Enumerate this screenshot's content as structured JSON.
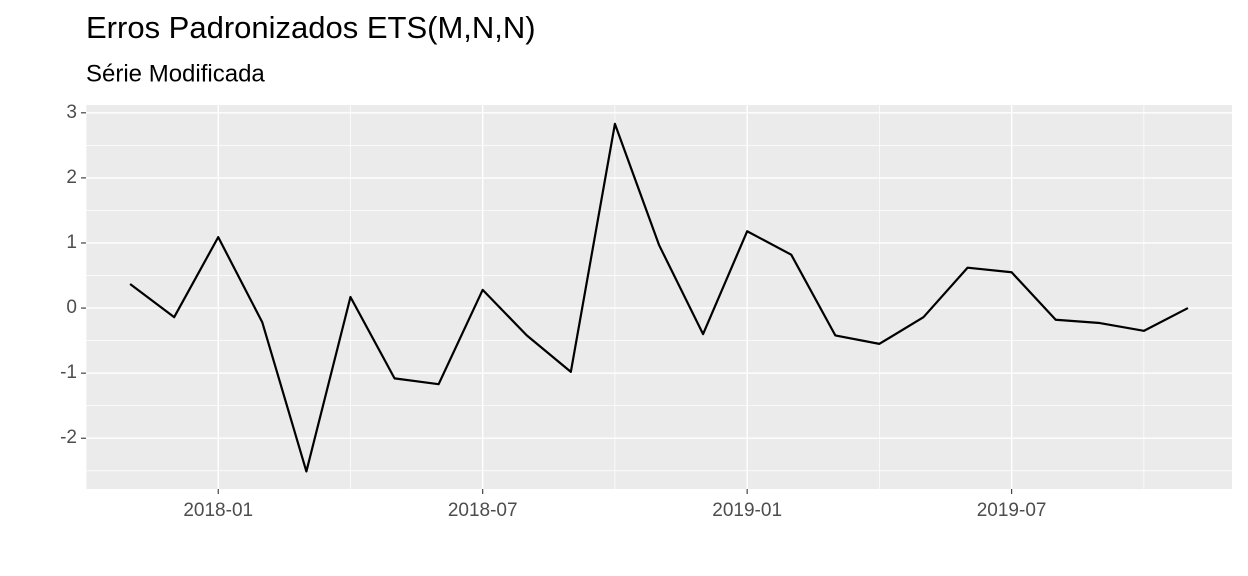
{
  "chart_data": {
    "type": "line",
    "title": "Erros Padronizados ETS(M,N,N)",
    "subtitle": "Série Modificada",
    "x": [
      "2017-11",
      "2017-12",
      "2018-01",
      "2018-02",
      "2018-03",
      "2018-04",
      "2018-05",
      "2018-06",
      "2018-07",
      "2018-08",
      "2018-09",
      "2018-10",
      "2018-11",
      "2018-12",
      "2019-01",
      "2019-02",
      "2019-03",
      "2019-04",
      "2019-05",
      "2019-06",
      "2019-07",
      "2019-08",
      "2019-09",
      "2019-10",
      "2019-11"
    ],
    "values": [
      0.37,
      -0.14,
      1.09,
      -0.22,
      -2.51,
      0.17,
      -1.08,
      -1.17,
      0.28,
      -0.42,
      -0.98,
      2.83,
      0.97,
      -0.4,
      1.18,
      0.82,
      -0.42,
      -0.55,
      -0.14,
      0.62,
      0.55,
      -0.18,
      -0.23,
      -0.35,
      0
    ],
    "color": "#000000",
    "xlim": [
      "2017-10",
      "2019-12"
    ],
    "xticks": [
      "2018-01",
      "2018-07",
      "2019-01",
      "2019-07"
    ],
    "ylim": [
      -2.78,
      3.12
    ],
    "yticks": [
      -2,
      -1,
      0,
      1,
      2,
      3
    ],
    "grid": true
  }
}
